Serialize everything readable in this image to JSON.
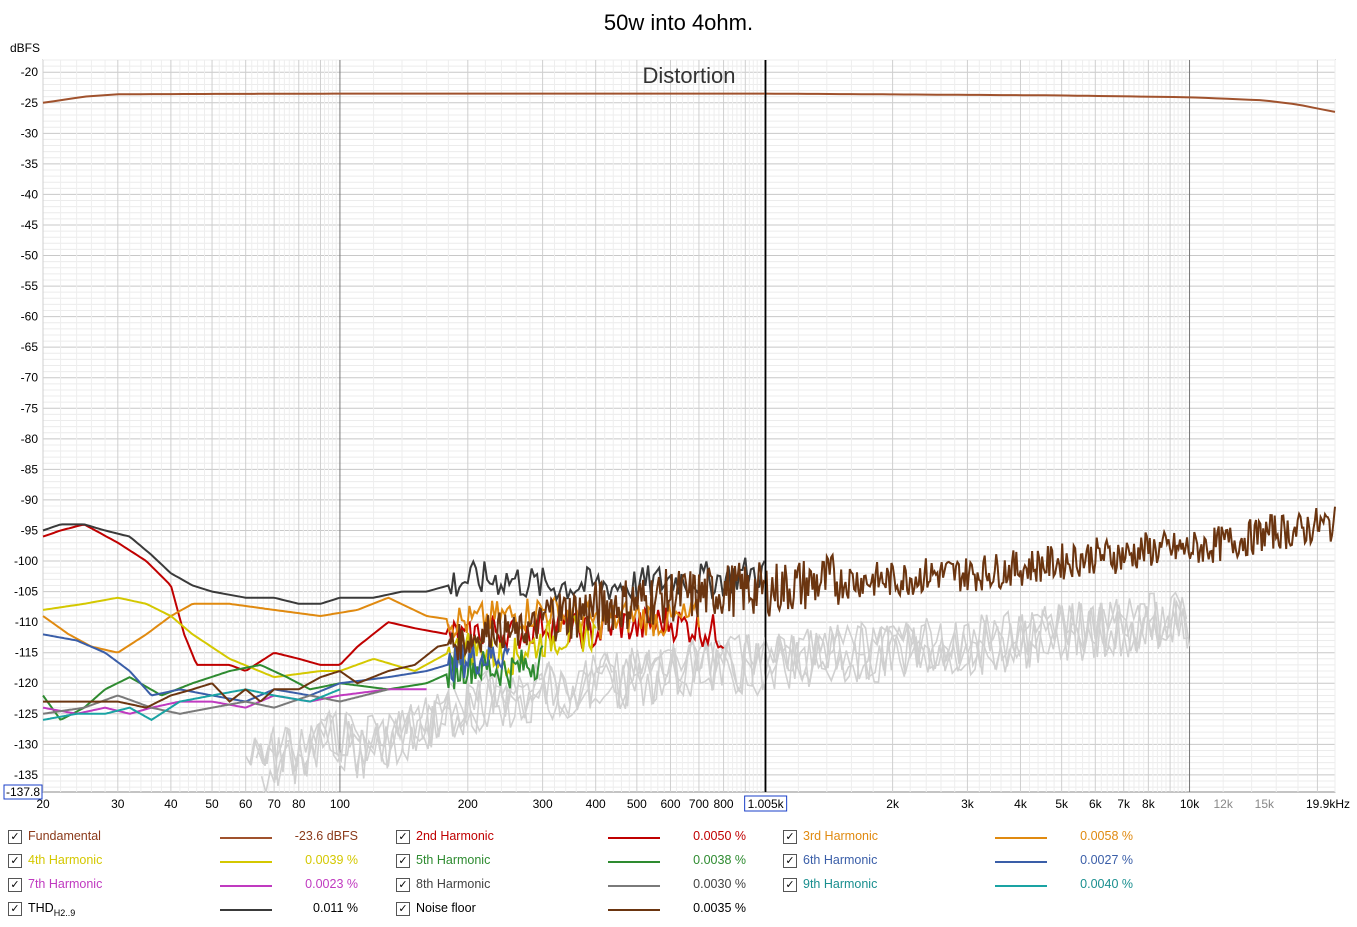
{
  "page": {
    "title": "50w into 4ohm."
  },
  "chart_data": {
    "type": "line",
    "title": "50w into 4ohm.",
    "plot_title": "Distortion",
    "ylabel": "dBFS",
    "xlabel": "",
    "x_scale": "log",
    "xlim": [
      20,
      22000
    ],
    "ylim": [
      -137.8,
      -18
    ],
    "y_ticks": [
      -20,
      -25,
      -30,
      -35,
      -40,
      -45,
      -50,
      -55,
      -60,
      -65,
      -70,
      -75,
      -80,
      -85,
      -90,
      -95,
      -100,
      -105,
      -110,
      -115,
      -120,
      -125,
      -130,
      -135
    ],
    "y_min_label": "-137.8",
    "x_ticks": [
      {
        "v": 20,
        "t": "20"
      },
      {
        "v": 30,
        "t": "30"
      },
      {
        "v": 40,
        "t": "40"
      },
      {
        "v": 50,
        "t": "50"
      },
      {
        "v": 60,
        "t": "60"
      },
      {
        "v": 70,
        "t": "70"
      },
      {
        "v": 80,
        "t": "80"
      },
      {
        "v": 100,
        "t": "100"
      },
      {
        "v": 200,
        "t": "200"
      },
      {
        "v": 300,
        "t": "300"
      },
      {
        "v": 400,
        "t": "400"
      },
      {
        "v": 500,
        "t": "500"
      },
      {
        "v": 600,
        "t": "600"
      },
      {
        "v": 700,
        "t": "700"
      },
      {
        "v": 800,
        "t": "800"
      },
      {
        "v": 1005,
        "t": "1.005k",
        "boxed": true
      },
      {
        "v": 2000,
        "t": "2k"
      },
      {
        "v": 3000,
        "t": "3k"
      },
      {
        "v": 4000,
        "t": "4k"
      },
      {
        "v": 5000,
        "t": "5k"
      },
      {
        "v": 6000,
        "t": "6k"
      },
      {
        "v": 7000,
        "t": "7k"
      },
      {
        "v": 8000,
        "t": "8k"
      },
      {
        "v": 10000,
        "t": "10k"
      },
      {
        "v": 12000,
        "t": "12k",
        "minor": true
      },
      {
        "v": 15000,
        "t": "15k",
        "minor": true
      },
      {
        "v": 19900,
        "t": "19.9kHz"
      }
    ],
    "cursor_x": 1005,
    "grid": true,
    "legend_position": "bottom",
    "series": [
      {
        "name": "Fundamental",
        "color": "#a0522d",
        "value": "-23.6 dBFS",
        "label_color": "#8b3a1a",
        "points": [
          [
            20,
            -25
          ],
          [
            25,
            -24
          ],
          [
            30,
            -23.6
          ],
          [
            100,
            -23.5
          ],
          [
            1000,
            -23.5
          ],
          [
            5000,
            -23.8
          ],
          [
            10000,
            -24.1
          ],
          [
            15000,
            -24.6
          ],
          [
            18000,
            -25.3
          ],
          [
            22000,
            -26.5
          ]
        ]
      },
      {
        "name": "2nd Harmonic",
        "color": "#c00000",
        "value": "0.0050 %",
        "label_color": "#c00000",
        "points": [
          [
            20,
            -96
          ],
          [
            22,
            -95
          ],
          [
            25,
            -94
          ],
          [
            30,
            -97
          ],
          [
            35,
            -100
          ],
          [
            40,
            -104
          ],
          [
            43,
            -112
          ],
          [
            46,
            -117
          ],
          [
            55,
            -117
          ],
          [
            60,
            -118
          ],
          [
            70,
            -115
          ],
          [
            80,
            -116
          ],
          [
            90,
            -117
          ],
          [
            100,
            -117
          ],
          [
            110,
            -114
          ],
          [
            130,
            -110
          ],
          [
            150,
            -111
          ],
          [
            180,
            -112
          ],
          [
            200,
            -113
          ],
          [
            220,
            -111
          ],
          [
            260,
            -112
          ],
          [
            300,
            -110
          ],
          [
            350,
            -111
          ],
          [
            400,
            -112
          ],
          [
            450,
            -110
          ],
          [
            500,
            -111
          ],
          [
            550,
            -110
          ],
          [
            600,
            -110
          ],
          [
            700,
            -111
          ],
          [
            800,
            -112
          ]
        ]
      },
      {
        "name": "3rd Harmonic",
        "color": "#e08a10",
        "value": "0.0058 %",
        "label_color": "#e08a10",
        "points": [
          [
            20,
            -109
          ],
          [
            23,
            -112
          ],
          [
            26,
            -114
          ],
          [
            30,
            -115
          ],
          [
            35,
            -112
          ],
          [
            40,
            -109
          ],
          [
            45,
            -107
          ],
          [
            55,
            -107
          ],
          [
            70,
            -108
          ],
          [
            90,
            -109
          ],
          [
            110,
            -108
          ],
          [
            130,
            -106
          ],
          [
            160,
            -109
          ],
          [
            200,
            -110
          ],
          [
            250,
            -109
          ],
          [
            300,
            -108
          ],
          [
            350,
            -109
          ],
          [
            400,
            -110
          ],
          [
            500,
            -109
          ],
          [
            600,
            -110
          ],
          [
            700,
            -109
          ]
        ]
      },
      {
        "name": "4th Harmonic",
        "color": "#d4c800",
        "value": "0.0039 %",
        "label_color": "#d4c800",
        "points": [
          [
            20,
            -108
          ],
          [
            25,
            -107
          ],
          [
            30,
            -106
          ],
          [
            35,
            -107
          ],
          [
            40,
            -109
          ],
          [
            45,
            -112
          ],
          [
            55,
            -116
          ],
          [
            70,
            -119
          ],
          [
            90,
            -118
          ],
          [
            100,
            -118
          ],
          [
            120,
            -116
          ],
          [
            150,
            -118
          ],
          [
            180,
            -115
          ],
          [
            200,
            -114
          ],
          [
            250,
            -116
          ],
          [
            300,
            -113
          ],
          [
            350,
            -112
          ],
          [
            400,
            -112
          ]
        ]
      },
      {
        "name": "5th Harmonic",
        "color": "#2e8b30",
        "value": "0.0038 %",
        "label_color": "#2e8b30",
        "points": [
          [
            20,
            -122
          ],
          [
            22,
            -126
          ],
          [
            25,
            -124
          ],
          [
            28,
            -121
          ],
          [
            32,
            -119
          ],
          [
            38,
            -122
          ],
          [
            45,
            -120
          ],
          [
            55,
            -118
          ],
          [
            65,
            -117
          ],
          [
            75,
            -119
          ],
          [
            85,
            -121
          ],
          [
            100,
            -120
          ],
          [
            130,
            -121
          ],
          [
            160,
            -120
          ],
          [
            200,
            -117
          ],
          [
            250,
            -118
          ],
          [
            300,
            -116
          ]
        ]
      },
      {
        "name": "6th Harmonic",
        "color": "#3a5ea8",
        "value": "0.0027 %",
        "label_color": "#3a5ea8",
        "points": [
          [
            20,
            -112
          ],
          [
            24,
            -113
          ],
          [
            28,
            -115
          ],
          [
            32,
            -118
          ],
          [
            36,
            -122
          ],
          [
            42,
            -121
          ],
          [
            50,
            -122
          ],
          [
            60,
            -123
          ],
          [
            70,
            -121
          ],
          [
            85,
            -122
          ],
          [
            100,
            -120
          ],
          [
            130,
            -119
          ],
          [
            160,
            -118
          ],
          [
            200,
            -116
          ],
          [
            250,
            -115
          ]
        ]
      },
      {
        "name": "7th Harmonic",
        "color": "#c03ac0",
        "value": "0.0023 %",
        "label_color": "#c03ac0",
        "points": [
          [
            20,
            -124
          ],
          [
            24,
            -125
          ],
          [
            28,
            -124
          ],
          [
            32,
            -125
          ],
          [
            36,
            -124
          ],
          [
            42,
            -123
          ],
          [
            50,
            -123
          ],
          [
            60,
            -124
          ],
          [
            70,
            -122
          ],
          [
            85,
            -123
          ],
          [
            100,
            -122
          ],
          [
            130,
            -121
          ],
          [
            160,
            -121
          ]
        ]
      },
      {
        "name": "8th Harmonic",
        "color": "#7a7a7a",
        "value": "0.0030 %",
        "label_color": "#444444",
        "points": [
          [
            20,
            -125
          ],
          [
            25,
            -124
          ],
          [
            30,
            -122
          ],
          [
            36,
            -124
          ],
          [
            42,
            -125
          ],
          [
            50,
            -124
          ],
          [
            60,
            -123
          ],
          [
            70,
            -124
          ],
          [
            85,
            -122
          ],
          [
            100,
            -123
          ],
          [
            130,
            -121
          ]
        ]
      },
      {
        "name": "9th Harmonic",
        "color": "#1aa3a3",
        "value": "0.0040 %",
        "label_color": "#1a8f8f",
        "points": [
          [
            20,
            -126
          ],
          [
            24,
            -125
          ],
          [
            28,
            -125
          ],
          [
            32,
            -124
          ],
          [
            36,
            -126
          ],
          [
            42,
            -123
          ],
          [
            50,
            -122
          ],
          [
            60,
            -121
          ],
          [
            70,
            -122
          ],
          [
            85,
            -123
          ],
          [
            100,
            -121
          ]
        ]
      },
      {
        "name": "THD",
        "name_sub": "H2..9",
        "color": "#3a3a3a",
        "value": "0.011 %",
        "label_color": "#000000",
        "points": [
          [
            20,
            -95
          ],
          [
            22,
            -94
          ],
          [
            25,
            -94
          ],
          [
            28,
            -95
          ],
          [
            32,
            -96
          ],
          [
            36,
            -99
          ],
          [
            40,
            -102
          ],
          [
            45,
            -104
          ],
          [
            50,
            -105
          ],
          [
            60,
            -106
          ],
          [
            70,
            -106
          ],
          [
            80,
            -107
          ],
          [
            90,
            -107
          ],
          [
            100,
            -106
          ],
          [
            120,
            -106
          ],
          [
            140,
            -105
          ],
          [
            160,
            -105
          ],
          [
            180,
            -104
          ],
          [
            200,
            -103
          ],
          [
            250,
            -103
          ],
          [
            300,
            -104
          ],
          [
            350,
            -104
          ],
          [
            400,
            -104
          ],
          [
            500,
            -104
          ],
          [
            600,
            -103
          ],
          [
            700,
            -103
          ],
          [
            800,
            -103
          ],
          [
            900,
            -102
          ],
          [
            1000,
            -102
          ]
        ]
      },
      {
        "name": "Noise floor",
        "color": "#6b3510",
        "value": "0.0035 %",
        "label_color": "#000000",
        "points": [
          [
            20,
            -123
          ],
          [
            30,
            -123
          ],
          [
            35,
            -124
          ],
          [
            40,
            -122
          ],
          [
            45,
            -121
          ],
          [
            50,
            -120
          ],
          [
            55,
            -123
          ],
          [
            60,
            -121
          ],
          [
            65,
            -123
          ],
          [
            70,
            -121
          ],
          [
            80,
            -121
          ],
          [
            90,
            -119
          ],
          [
            100,
            -118
          ],
          [
            110,
            -120
          ],
          [
            130,
            -118
          ],
          [
            150,
            -117
          ],
          [
            170,
            -114
          ],
          [
            200,
            -113
          ],
          [
            230,
            -111
          ],
          [
            260,
            -112
          ],
          [
            300,
            -110
          ],
          [
            350,
            -110
          ],
          [
            400,
            -109
          ],
          [
            500,
            -108
          ],
          [
            600,
            -107
          ],
          [
            700,
            -107
          ],
          [
            800,
            -106
          ],
          [
            1000,
            -106
          ],
          [
            1300,
            -105
          ],
          [
            1600,
            -104
          ],
          [
            2000,
            -104
          ],
          [
            2500,
            -103
          ],
          [
            3000,
            -103
          ],
          [
            4000,
            -102
          ],
          [
            5000,
            -101
          ],
          [
            6000,
            -100
          ],
          [
            7000,
            -100
          ],
          [
            8000,
            -99
          ],
          [
            10000,
            -99
          ],
          [
            12000,
            -98
          ],
          [
            14000,
            -97
          ],
          [
            16000,
            -96
          ],
          [
            18000,
            -96
          ],
          [
            20000,
            -95
          ],
          [
            22000,
            -95
          ]
        ]
      }
    ]
  }
}
